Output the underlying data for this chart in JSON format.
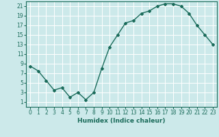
{
  "x": [
    0,
    1,
    2,
    3,
    4,
    5,
    6,
    7,
    8,
    9,
    10,
    11,
    12,
    13,
    14,
    15,
    16,
    17,
    18,
    19,
    20,
    21,
    22,
    23
  ],
  "y": [
    8.5,
    7.5,
    5.5,
    3.5,
    4.0,
    2.0,
    3.0,
    1.5,
    3.0,
    8.0,
    12.5,
    15.0,
    17.5,
    18.0,
    19.5,
    20.0,
    21.0,
    21.5,
    21.5,
    21.0,
    19.5,
    17.0,
    15.0,
    13.0
  ],
  "line_color": "#1a6b5a",
  "marker": "D",
  "marker_size": 2,
  "background_color": "#cce9ea",
  "grid_color": "#b0d8da",
  "xlabel": "Humidex (Indice chaleur)",
  "xlim": [
    -0.5,
    23.5
  ],
  "ylim": [
    0,
    22
  ],
  "yticks": [
    1,
    3,
    5,
    7,
    9,
    11,
    13,
    15,
    17,
    19,
    21
  ],
  "xticks": [
    0,
    1,
    2,
    3,
    4,
    5,
    6,
    7,
    8,
    9,
    10,
    11,
    12,
    13,
    14,
    15,
    16,
    17,
    18,
    19,
    20,
    21,
    22,
    23
  ],
  "tick_fontsize": 5.5,
  "xlabel_fontsize": 6.5,
  "line_width": 1.0
}
